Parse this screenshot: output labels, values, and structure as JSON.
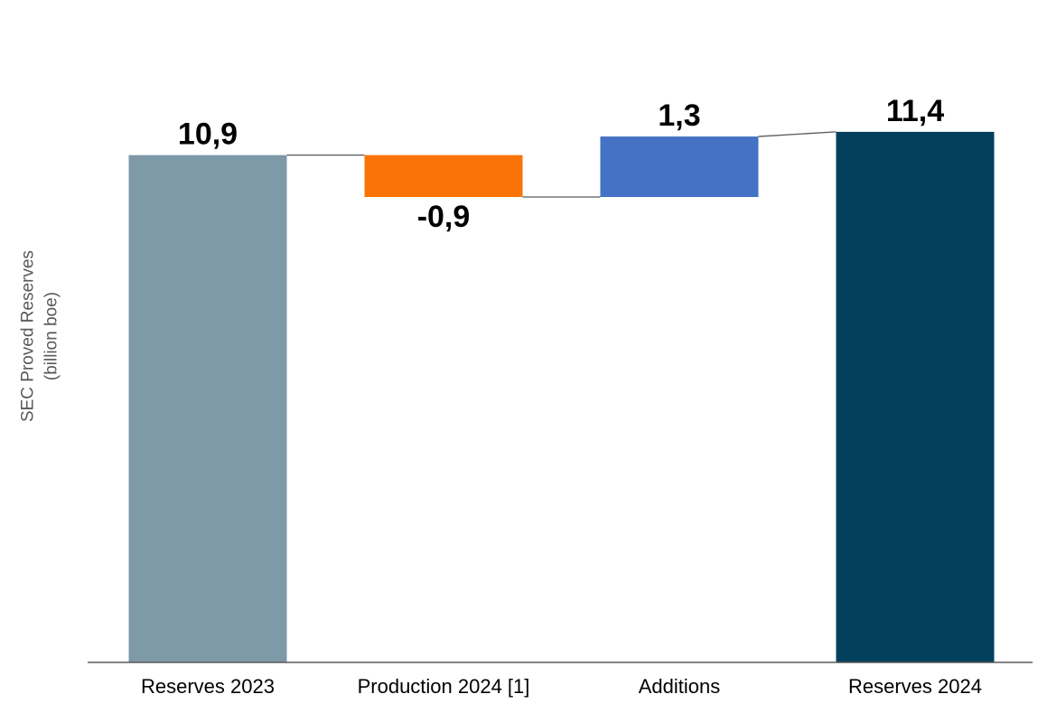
{
  "chart_data": {
    "type": "bar",
    "subtype": "waterfall",
    "title": "",
    "xlabel": "",
    "ylabel_lines": [
      "SEC Proved Reserves",
      "(billion boe)"
    ],
    "categories": [
      "Reserves 2023",
      "Production 2024 [1]",
      "Additions",
      "Reserves 2024"
    ],
    "series": [
      {
        "name": "SEC Proved Reserves (billion boe)",
        "points": [
          {
            "category": "Reserves 2023",
            "value": 10.9,
            "label": "10,9",
            "kind": "total",
            "color": "#7E99A8",
            "label_position": "above"
          },
          {
            "category": "Production 2024 [1]",
            "value": -0.9,
            "label": "-0,9",
            "kind": "delta",
            "color": "#FA7306",
            "label_position": "below"
          },
          {
            "category": "Additions",
            "value": 1.3,
            "label": "1,3",
            "kind": "delta",
            "color": "#4472C4",
            "label_position": "above"
          },
          {
            "category": "Reserves 2024",
            "value": 11.4,
            "label": "11,4",
            "kind": "total",
            "color": "#02405E",
            "label_position": "above"
          }
        ]
      }
    ],
    "ylim": [
      0,
      11.4
    ],
    "grid": false,
    "legend": false,
    "decimal_separator": ",",
    "colors": {
      "axis": "#595959",
      "connector": "#595959",
      "data_label": "#000000",
      "category_label": "#000000",
      "y_axis_title": "#595959"
    }
  }
}
